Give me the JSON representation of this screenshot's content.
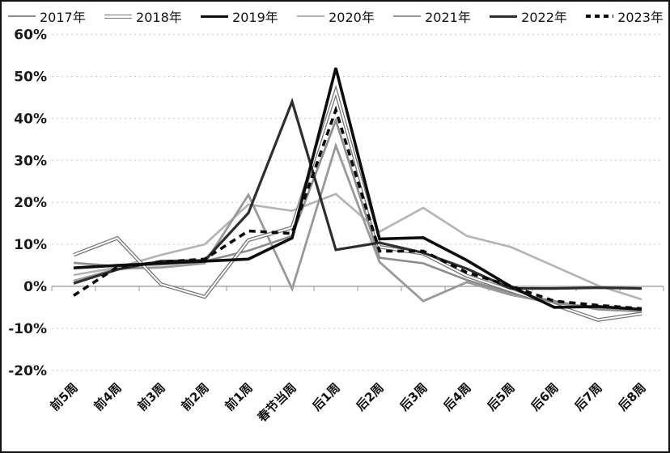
{
  "chart_data": {
    "type": "line",
    "title": "",
    "xlabel": "",
    "ylabel": "",
    "categories": [
      "前5周",
      "前4周",
      "前3周",
      "前2周",
      "前1周",
      "春节当周",
      "后1周",
      "后2周",
      "后3周",
      "后4周",
      "后5周",
      "后6周",
      "后7周",
      "后8周"
    ],
    "y_tick_labels": [
      "60%",
      "50%",
      "40%",
      "30%",
      "20%",
      "10%",
      "0%",
      "-10%",
      "-20%"
    ],
    "ylim": [
      -20,
      60
    ],
    "ytick_step": 10,
    "grid": "horizontal-dotted",
    "legend_position": "top",
    "series": [
      {
        "name": "2017年",
        "style": "solid",
        "color": "#8c8c8c",
        "width": 2.6,
        "values": [
          5.6,
          4.8,
          5.2,
          6.0,
          8.5,
          12.0,
          39.5,
          6.8,
          5.5,
          1.5,
          -1.5,
          -3.5,
          -5.5,
          -6.0
        ]
      },
      {
        "name": "2018年",
        "style": "double",
        "color": "#777777",
        "width": 4.6,
        "values": [
          7.5,
          11.5,
          0.5,
          -2.5,
          11.0,
          14.0,
          46.5,
          9.4,
          7.8,
          2.5,
          -1.0,
          -4.4,
          -8.0,
          -6.5
        ]
      },
      {
        "name": "2019年",
        "style": "solid",
        "color": "#0d0d0d",
        "width": 3.6,
        "values": [
          4.4,
          5.0,
          5.5,
          6.0,
          6.5,
          11.5,
          52.0,
          11.3,
          11.6,
          6.2,
          0.0,
          -5.0,
          -4.8,
          -5.5
        ]
      },
      {
        "name": "2020年",
        "style": "solid",
        "color": "#b3b3b3",
        "width": 2.6,
        "values": [
          2.7,
          4.5,
          7.5,
          10.0,
          19.5,
          18.0,
          22.0,
          13.0,
          18.7,
          12.0,
          9.4,
          4.8,
          0.2,
          -3.1
        ]
      },
      {
        "name": "2021年",
        "style": "solid",
        "color": "#999999",
        "width": 2.8,
        "values": [
          1.3,
          4.2,
          4.5,
          5.5,
          21.8,
          -0.6,
          33.5,
          5.8,
          -3.5,
          1.0,
          -2.0,
          -4.0,
          -5.0,
          -6.0
        ]
      },
      {
        "name": "2022年",
        "style": "solid",
        "color": "#2e2e2e",
        "width": 3.2,
        "values": [
          0.7,
          4.0,
          6.0,
          6.2,
          17.5,
          44.0,
          8.7,
          10.4,
          8.0,
          4.2,
          -0.5,
          -0.5,
          -0.3,
          -0.5
        ]
      },
      {
        "name": "2023年",
        "style": "dashed",
        "color": "#0a0a0a",
        "width": 3.6,
        "values": [
          -2.2,
          4.6,
          5.8,
          6.5,
          13.2,
          12.6,
          42.0,
          8.4,
          8.4,
          3.3,
          0.1,
          -3.5,
          -4.5,
          -5.3
        ]
      }
    ],
    "colors": {
      "grid": "#c9c9c9",
      "zero_line": "#a8a8a8",
      "tick": "#999999",
      "text": "#1a1a1a"
    }
  }
}
